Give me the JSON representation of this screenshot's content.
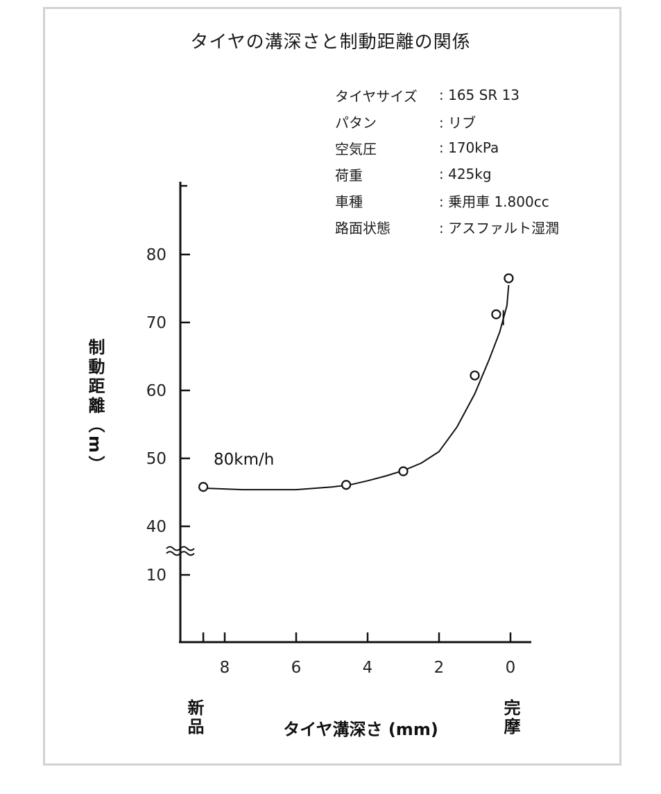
{
  "title": "タイヤの溝深さと制動距離の関係",
  "specs": [
    {
      "label": "タイヤサイズ",
      "value": ": 165 SR 13"
    },
    {
      "label": "パタン",
      "value": ": リブ"
    },
    {
      "label": "空気圧",
      "value": ": 170kPa"
    },
    {
      "label": "荷重",
      "value": ": 425kg"
    },
    {
      "label": "車種",
      "value": ": 乗用車 1.800cc"
    },
    {
      "label": "路面状態",
      "value": ": アスファルト湿潤"
    }
  ],
  "chart_data": {
    "type": "scatter",
    "title": "タイヤの溝深さと制動距離の関係",
    "xlabel": "タイヤ溝深さ (mm)",
    "ylabel": "制動距離（m）",
    "x_reversed": true,
    "xlim": [
      9,
      -0.6
    ],
    "x_ticks": [
      8,
      6,
      4,
      2,
      0
    ],
    "y_ticks": [
      10,
      40,
      50,
      60,
      70,
      80
    ],
    "y_axis_break": "10-40",
    "x_end_labels": {
      "left": "新品",
      "right": "完摩"
    },
    "annotation": "80km/h",
    "grid": false,
    "series": [
      {
        "points": [
          {
            "x": 8.6,
            "y": 45.8
          },
          {
            "x": 4.6,
            "y": 46.1
          },
          {
            "x": 3.0,
            "y": 48.1
          },
          {
            "x": 1.0,
            "y": 62.2
          },
          {
            "x": 0.4,
            "y": 71.2
          },
          {
            "x": 0.05,
            "y": 76.5
          }
        ],
        "trend_curve": [
          [
            8.5,
            45.6
          ],
          [
            7.5,
            45.4
          ],
          [
            6.0,
            45.4
          ],
          [
            5.0,
            45.8
          ],
          [
            4.5,
            46.1
          ],
          [
            4.0,
            46.7
          ],
          [
            3.5,
            47.4
          ],
          [
            3.0,
            48.2
          ],
          [
            2.5,
            49.3
          ],
          [
            2.0,
            51.0
          ],
          [
            1.5,
            54.6
          ],
          [
            1.0,
            59.5
          ],
          [
            0.6,
            64.5
          ],
          [
            0.3,
            68.6
          ],
          [
            0.1,
            72.5
          ],
          [
            0.05,
            75.5
          ]
        ]
      }
    ]
  }
}
